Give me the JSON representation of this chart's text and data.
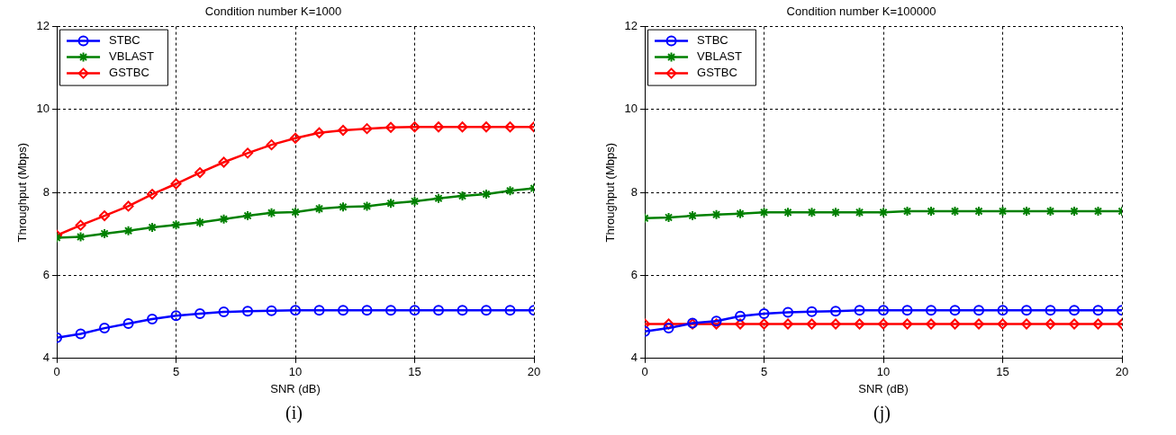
{
  "chart_data": [
    {
      "type": "line",
      "title": "Condition number K=1000",
      "xlabel": "SNR (dB)",
      "ylabel": "Throughput (Mbps)",
      "annotations": [
        "(i)"
      ],
      "x": [
        0,
        1,
        2,
        3,
        4,
        5,
        6,
        7,
        8,
        9,
        10,
        11,
        12,
        13,
        14,
        15,
        16,
        17,
        18,
        19,
        20
      ],
      "xlim": [
        0,
        20
      ],
      "xticks": [
        0,
        5,
        10,
        15,
        20
      ],
      "ylim": [
        4,
        12
      ],
      "yticks": [
        4,
        6,
        8,
        10,
        12
      ],
      "grid": true,
      "legend": "top left",
      "series": [
        {
          "name": "STBC",
          "color": "#0000ff",
          "marker": "circle",
          "values": [
            4.5,
            4.59,
            4.73,
            4.84,
            4.95,
            5.03,
            5.08,
            5.12,
            5.14,
            5.15,
            5.16,
            5.16,
            5.16,
            5.16,
            5.16,
            5.16,
            5.16,
            5.16,
            5.16,
            5.16,
            5.16
          ]
        },
        {
          "name": "VBLAST",
          "color": "#008000",
          "marker": "cross",
          "values": [
            6.91,
            6.93,
            7.01,
            7.08,
            7.16,
            7.22,
            7.28,
            7.36,
            7.44,
            7.51,
            7.53,
            7.61,
            7.65,
            7.67,
            7.74,
            7.79,
            7.86,
            7.92,
            7.96,
            8.04,
            8.1
          ]
        },
        {
          "name": "GSTBC",
          "color": "#ff0000",
          "marker": "diamond",
          "values": [
            6.97,
            7.21,
            7.44,
            7.67,
            7.96,
            8.21,
            8.48,
            8.73,
            8.95,
            9.15,
            9.31,
            9.44,
            9.5,
            9.54,
            9.57,
            9.58,
            9.58,
            9.58,
            9.58,
            9.58,
            9.58
          ]
        }
      ]
    },
    {
      "type": "line",
      "title": "Condition number K=100000",
      "xlabel": "SNR (dB)",
      "ylabel": "Throughput (Mbps)",
      "annotations": [
        "(j)"
      ],
      "x": [
        0,
        1,
        2,
        3,
        4,
        5,
        6,
        7,
        8,
        9,
        10,
        11,
        12,
        13,
        14,
        15,
        16,
        17,
        18,
        19,
        20
      ],
      "xlim": [
        0,
        20
      ],
      "xticks": [
        0,
        5,
        10,
        15,
        20
      ],
      "ylim": [
        4,
        12
      ],
      "yticks": [
        4,
        6,
        8,
        10,
        12
      ],
      "grid": true,
      "legend": "top left",
      "series": [
        {
          "name": "STBC",
          "color": "#0000ff",
          "marker": "circle",
          "values": [
            4.65,
            4.73,
            4.85,
            4.9,
            5.02,
            5.08,
            5.11,
            5.13,
            5.14,
            5.16,
            5.16,
            5.16,
            5.16,
            5.16,
            5.16,
            5.16,
            5.16,
            5.16,
            5.16,
            5.16,
            5.16
          ]
        },
        {
          "name": "VBLAST",
          "color": "#008000",
          "marker": "cross",
          "values": [
            7.38,
            7.4,
            7.44,
            7.47,
            7.49,
            7.52,
            7.52,
            7.52,
            7.52,
            7.52,
            7.52,
            7.55,
            7.55,
            7.55,
            7.55,
            7.55,
            7.55,
            7.55,
            7.55,
            7.55,
            7.55
          ]
        },
        {
          "name": "GSTBC",
          "color": "#ff0000",
          "marker": "diamond",
          "values": [
            4.83,
            4.83,
            4.83,
            4.83,
            4.83,
            4.83,
            4.83,
            4.83,
            4.83,
            4.83,
            4.83,
            4.83,
            4.83,
            4.83,
            4.83,
            4.83,
            4.83,
            4.83,
            4.83,
            4.83,
            4.83
          ]
        }
      ]
    }
  ]
}
